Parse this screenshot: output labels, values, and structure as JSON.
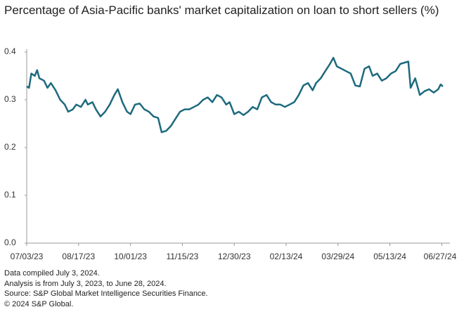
{
  "chart_data": {
    "type": "line",
    "title": "Percentage of Asia-Pacific banks' market capitalization on loan to short sellers (%)",
    "notes": [
      "Data compiled July 3, 2024.",
      "Analysis is from July 3, 2023, to June 28, 2024.",
      "Source: S&P Global Market Intelligence Securities Finance.",
      "© 2024 S&P Global."
    ],
    "x": [
      "07/03/23",
      "07/05/23",
      "07/07/23",
      "07/10/23",
      "07/12/23",
      "07/14/23",
      "07/18/23",
      "07/21/23",
      "07/24/23",
      "07/28/23",
      "08/01/23",
      "08/05/23",
      "08/08/23",
      "08/12/23",
      "08/15/23",
      "08/19/23",
      "08/23/23",
      "08/25/23",
      "08/29/23",
      "09/01/23",
      "09/05/23",
      "09/09/23",
      "09/13/23",
      "09/17/23",
      "09/20/23",
      "09/24/23",
      "09/28/23",
      "10/01/23",
      "10/05/23",
      "10/09/23",
      "10/13/23",
      "10/17/23",
      "10/21/23",
      "10/25/23",
      "10/28/23",
      "11/01/23",
      "11/05/23",
      "11/09/23",
      "11/13/23",
      "11/17/23",
      "11/21/23",
      "11/25/23",
      "11/29/23",
      "12/03/23",
      "12/07/23",
      "12/11/23",
      "12/15/23",
      "12/19/23",
      "12/23/23",
      "12/26/23",
      "12/30/23",
      "01/03/24",
      "01/07/24",
      "01/11/24",
      "01/15/24",
      "01/19/24",
      "01/23/24",
      "01/27/24",
      "01/31/24",
      "02/04/24",
      "02/08/24",
      "02/12/24",
      "02/16/24",
      "02/20/24",
      "02/24/24",
      "02/28/24",
      "03/03/24",
      "03/07/24",
      "03/10/24",
      "03/14/24",
      "03/18/24",
      "03/22/24",
      "03/25/24",
      "03/28/24",
      "04/01/24",
      "04/05/24",
      "04/09/24",
      "04/13/24",
      "04/17/24",
      "04/21/24",
      "04/25/24",
      "04/28/24",
      "05/02/24",
      "05/06/24",
      "05/10/24",
      "05/14/24",
      "05/18/24",
      "05/22/24",
      "05/26/24",
      "05/29/24",
      "05/31/24",
      "06/04/24",
      "06/08/24",
      "06/12/24",
      "06/16/24",
      "06/20/24",
      "06/24/24",
      "06/26/24",
      "06/28/24"
    ],
    "series": [
      {
        "color": "#1d6a7e",
        "values": [
          0.328,
          0.325,
          0.355,
          0.35,
          0.362,
          0.345,
          0.34,
          0.325,
          0.335,
          0.32,
          0.3,
          0.29,
          0.275,
          0.28,
          0.29,
          0.285,
          0.3,
          0.29,
          0.295,
          0.28,
          0.265,
          0.275,
          0.29,
          0.31,
          0.322,
          0.295,
          0.275,
          0.27,
          0.29,
          0.292,
          0.28,
          0.275,
          0.265,
          0.262,
          0.232,
          0.235,
          0.245,
          0.26,
          0.275,
          0.28,
          0.28,
          0.285,
          0.29,
          0.3,
          0.305,
          0.295,
          0.31,
          0.305,
          0.29,
          0.295,
          0.27,
          0.275,
          0.268,
          0.275,
          0.285,
          0.28,
          0.305,
          0.31,
          0.295,
          0.29,
          0.29,
          0.285,
          0.29,
          0.295,
          0.31,
          0.33,
          0.335,
          0.32,
          0.335,
          0.345,
          0.36,
          0.375,
          0.388,
          0.37,
          0.365,
          0.36,
          0.355,
          0.33,
          0.328,
          0.365,
          0.37,
          0.35,
          0.355,
          0.34,
          0.345,
          0.355,
          0.36,
          0.375,
          0.378,
          0.38,
          0.325,
          0.345,
          0.31,
          0.318,
          0.322,
          0.315,
          0.322,
          0.332,
          0.328
        ]
      }
    ],
    "xlim": [
      "07/03/23",
      "06/28/24"
    ],
    "xticks": [
      "07/03/23",
      "08/17/23",
      "10/01/23",
      "11/15/23",
      "12/30/23",
      "02/13/24",
      "03/29/24",
      "05/13/24",
      "06/27/24"
    ],
    "ylim": [
      0,
      0.4
    ],
    "yticks": [
      {
        "value": 0,
        "label": "0.0"
      },
      0.1,
      0.2,
      0.3,
      0.4
    ]
  }
}
